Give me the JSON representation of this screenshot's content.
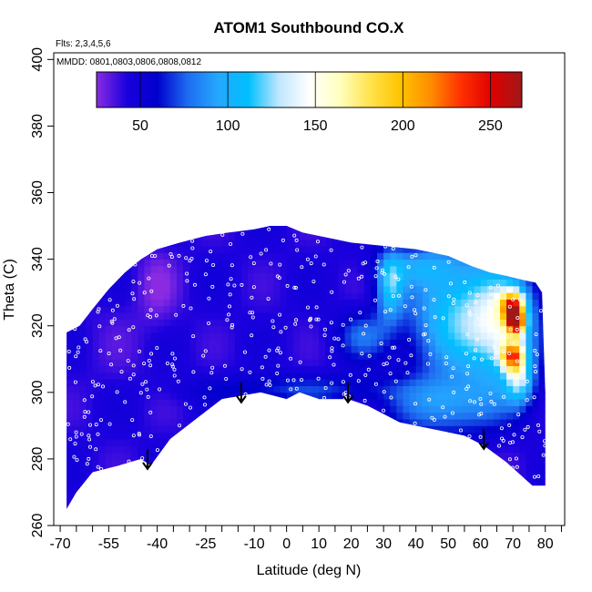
{
  "chart_data": {
    "type": "heatmap",
    "title": "ATOM1 Southbound CO.X",
    "annotations": {
      "flights": "Flts: 2,3,4,5,6",
      "dates": "MMDD: 0801,0803,0806,0808,0812"
    },
    "xlabel": "Latitude (deg N)",
    "ylabel": "Theta (C)",
    "xlim": [
      -72,
      86
    ],
    "ylim": [
      260,
      402
    ],
    "x_ticks": [
      -70,
      -55,
      -40,
      -25,
      -10,
      0,
      10,
      20,
      30,
      40,
      50,
      60,
      70,
      80
    ],
    "x_tick_labels": [
      "-70",
      "-55",
      "-40",
      "-25",
      "-10",
      "0",
      "10",
      "20",
      "30",
      "40",
      "50",
      "60",
      "70",
      "80"
    ],
    "x_minor_ticks": [
      -65,
      -60,
      -50,
      -45,
      -35,
      -30,
      -20,
      -15,
      -5,
      5,
      15,
      25,
      35,
      45,
      55,
      65,
      75,
      85
    ],
    "y_ticks": [
      260,
      280,
      300,
      320,
      340,
      360,
      380,
      400
    ],
    "y_tick_labels": [
      "260",
      "280",
      "300",
      "320",
      "340",
      "360",
      "380",
      "400"
    ],
    "colorbar": {
      "range": [
        25,
        268
      ],
      "ticks": [
        50,
        100,
        150,
        200,
        250
      ],
      "tick_labels": [
        "50",
        "100",
        "150",
        "200",
        "250"
      ],
      "colors": [
        "#8a2be2",
        "#1a00dd",
        "#0000cc",
        "#1e6cf0",
        "#24a8ff",
        "#00bfff",
        "#bfe6ff",
        "#ffffff",
        "#ffffbf",
        "#ffe34d",
        "#ffc300",
        "#ff8c00",
        "#ff3000",
        "#e00000",
        "#a01818"
      ]
    },
    "tropopause_arrows": [
      {
        "lat": -43,
        "theta": 277
      },
      {
        "lat": -14,
        "theta": 297
      },
      {
        "lat": 19,
        "theta": 297
      },
      {
        "lat": 61,
        "theta": 283
      }
    ],
    "background_value": 42,
    "features": [
      {
        "lat": -40,
        "theta": 332,
        "value": 28,
        "sx": 4.5,
        "sy": 8
      },
      {
        "lat": -52,
        "theta": 315,
        "value": 38,
        "sx": 8,
        "sy": 12
      },
      {
        "lat": 32,
        "theta": 332,
        "value": 105,
        "sx": 3,
        "sy": 7
      },
      {
        "lat": 24,
        "theta": 317,
        "value": 75,
        "sx": 6,
        "sy": 5
      },
      {
        "lat": 52,
        "theta": 324,
        "value": 112,
        "sx": 10,
        "sy": 14
      },
      {
        "lat": 67,
        "theta": 320,
        "value": 125,
        "sx": 7,
        "sy": 12
      },
      {
        "lat": 70,
        "theta": 326,
        "value": 175,
        "sx": 2.5,
        "sy": 3
      },
      {
        "lat": 71,
        "theta": 321,
        "value": 195,
        "sx": 2,
        "sy": 2.5
      },
      {
        "lat": 70,
        "theta": 311,
        "value": 165,
        "sx": 2.5,
        "sy": 3
      },
      {
        "lat": 72,
        "theta": 304,
        "value": 105,
        "sx": 3,
        "sy": 5
      },
      {
        "lat": 5,
        "theta": 301,
        "value": 68,
        "sx": 22,
        "sy": 3
      },
      {
        "lat": 50,
        "theta": 296,
        "value": 85,
        "sx": 12,
        "sy": 6
      },
      {
        "lat": 40,
        "theta": 338,
        "value": 75,
        "sx": 8,
        "sy": 4
      }
    ],
    "upper_boundary": [
      [
        -68,
        318
      ],
      [
        -64,
        320
      ],
      [
        -60,
        325
      ],
      [
        -55,
        331
      ],
      [
        -50,
        336
      ],
      [
        -45,
        340
      ],
      [
        -40,
        343
      ],
      [
        -33,
        345
      ],
      [
        -25,
        347
      ],
      [
        -18,
        348
      ],
      [
        -10,
        349
      ],
      [
        -5,
        350
      ],
      [
        0,
        350
      ],
      [
        5,
        348
      ],
      [
        10,
        347
      ],
      [
        20,
        345
      ],
      [
        30,
        344
      ],
      [
        40,
        343
      ],
      [
        50,
        341
      ],
      [
        57,
        338
      ],
      [
        63,
        336
      ],
      [
        68,
        335
      ],
      [
        72,
        334
      ],
      [
        77,
        333
      ],
      [
        79,
        330
      ],
      [
        80,
        300
      ]
    ],
    "lower_boundary": [
      [
        -68,
        265
      ],
      [
        -65,
        270
      ],
      [
        -60,
        276
      ],
      [
        -52,
        278
      ],
      [
        -45,
        280
      ],
      [
        -42,
        278
      ],
      [
        -36,
        286
      ],
      [
        -28,
        292
      ],
      [
        -20,
        298
      ],
      [
        -14,
        299
      ],
      [
        -8,
        300
      ],
      [
        0,
        298
      ],
      [
        4,
        300
      ],
      [
        10,
        298
      ],
      [
        19,
        298
      ],
      [
        25,
        296
      ],
      [
        35,
        291
      ],
      [
        45,
        289
      ],
      [
        55,
        287
      ],
      [
        61,
        284
      ],
      [
        68,
        279
      ],
      [
        76,
        272
      ],
      [
        80,
        272
      ]
    ]
  }
}
